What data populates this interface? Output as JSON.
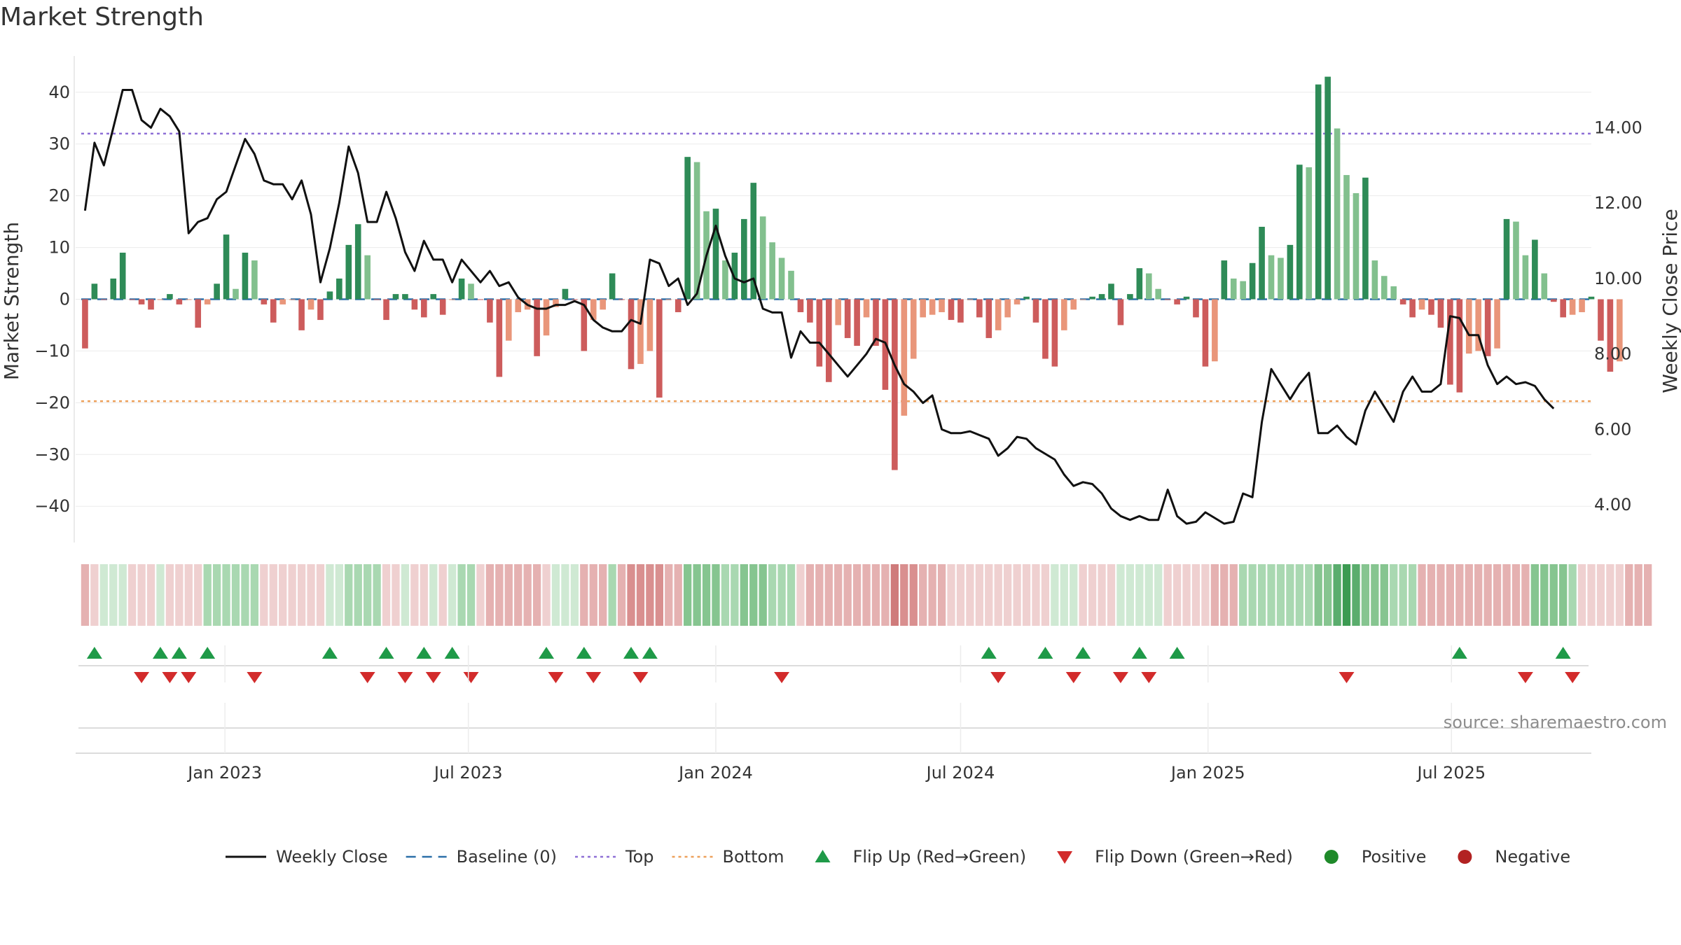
{
  "title": "Market Strength",
  "source": "source: sharemaestro.com",
  "colors": {
    "line": "#111111",
    "baseline": "#2b6fa8",
    "top": "#8e6fd6",
    "bottom": "#eda05a",
    "pos_strong": "#2e8b57",
    "pos_light": "#82c08e",
    "neg_strong": "#cd5c5c",
    "neg_light": "#e9967a",
    "flip_up": "#1f9a48",
    "flip_down": "#d22b2b",
    "positive_dot": "#1f8a2a",
    "negative_dot": "#b22222"
  },
  "chart_data": {
    "type": "bar",
    "title": "Market Strength",
    "ylabel": "Market Strength",
    "y2label": "Weekly Close Price",
    "ylim": [
      -47,
      47
    ],
    "y2lim": [
      3.0,
      15.9
    ],
    "yticks": [
      40,
      30,
      20,
      10,
      0,
      -10,
      -20,
      -30,
      -40
    ],
    "y2ticks": [
      "14.00",
      "12.00",
      "10.00",
      "8.00",
      "6.00",
      "4.00"
    ],
    "y2tick_values": [
      14,
      12,
      10,
      8,
      6,
      4
    ],
    "xlim": [
      "2022-09-12",
      "2025-10-13"
    ],
    "x_start": "2022-09-19",
    "x_step_days": 7,
    "xticks": [
      {
        "label": "Jan 2023",
        "date": "2023-01-01"
      },
      {
        "label": "Jul 2023",
        "date": "2023-07-01"
      },
      {
        "label": "Jan 2024",
        "date": "2024-01-01"
      },
      {
        "label": "Jul 2024",
        "date": "2024-07-01"
      },
      {
        "label": "Jan 2025",
        "date": "2025-01-01"
      },
      {
        "label": "Jul 2025",
        "date": "2025-07-01"
      }
    ],
    "reference_lines": {
      "baseline": 0,
      "top": 32,
      "bottom": -19.7
    },
    "strength": [
      -9.5,
      3,
      0,
      4,
      9,
      0,
      -1,
      -2,
      0,
      1,
      -1,
      0,
      -5.5,
      -1,
      3,
      12.5,
      2,
      9,
      7.5,
      -1,
      -4.5,
      -1,
      0,
      -6,
      -2,
      -4,
      1.5,
      4,
      10.5,
      14.5,
      8.5,
      0,
      -4,
      1,
      1,
      -2,
      -3.5,
      1,
      -3,
      0,
      4,
      3,
      0,
      -4.5,
      -15,
      -8,
      -2.5,
      -2,
      -11,
      -7,
      -1.5,
      2,
      0,
      -10,
      -4,
      -2,
      5,
      0,
      -13.5,
      -12.5,
      -10,
      -19,
      0,
      -2.5,
      27.5,
      26.5,
      17,
      17.5,
      7.5,
      9,
      15.5,
      22.5,
      16,
      11,
      8,
      5.5,
      -2.5,
      -4.5,
      -13,
      -16,
      -5,
      -7.5,
      -9,
      -3.5,
      -9,
      -17.5,
      -33,
      -22.5,
      -11.5,
      -3.5,
      -3,
      -2.5,
      -4,
      -4.5,
      0,
      -3.5,
      -7.5,
      -6,
      -3.5,
      -1,
      0.5,
      -4.5,
      -11.5,
      -13,
      -6,
      -2,
      0,
      0.5,
      1,
      3,
      -5,
      1,
      6,
      5,
      2,
      0,
      -1,
      0.5,
      -3.5,
      -13,
      -12,
      7.5,
      4,
      3.5,
      7,
      14,
      8.5,
      8,
      10.5,
      26,
      25.5,
      41.5,
      43,
      33,
      24,
      20.5,
      23.5,
      7.5,
      4.5,
      2.5,
      -1,
      -3.5,
      -2,
      -3,
      -5.5,
      -16.5,
      -18,
      -10.5,
      -10,
      -11,
      -9.5,
      15.5,
      15,
      8.5,
      11.5,
      5,
      -0.5,
      -3.5,
      -3,
      -2.5,
      0.5,
      -8,
      -14,
      -12
    ],
    "close": [
      11.8,
      13.6,
      13.0,
      14.0,
      15.0,
      15.0,
      14.2,
      14.0,
      14.5,
      14.3,
      13.9,
      11.2,
      11.5,
      11.6,
      12.1,
      12.3,
      13.0,
      13.7,
      13.3,
      12.6,
      12.5,
      12.5,
      12.1,
      12.6,
      11.7,
      9.9,
      10.8,
      12.0,
      13.5,
      12.8,
      11.5,
      11.5,
      12.3,
      11.6,
      10.7,
      10.2,
      11.0,
      10.5,
      10.5,
      9.9,
      10.5,
      10.2,
      9.9,
      10.2,
      9.8,
      9.9,
      9.5,
      9.3,
      9.2,
      9.2,
      9.3,
      9.3,
      9.4,
      9.3,
      8.9,
      8.7,
      8.6,
      8.6,
      8.9,
      8.8,
      10.5,
      10.4,
      9.8,
      10.0,
      9.3,
      9.6,
      10.6,
      11.4,
      10.6,
      10.0,
      9.9,
      10.0,
      9.2,
      9.1,
      9.1,
      7.9,
      8.6,
      8.3,
      8.3,
      8.0,
      7.7,
      7.4,
      7.7,
      8.0,
      8.4,
      8.3,
      7.7,
      7.2,
      7.0,
      6.7,
      6.9,
      6.0,
      5.9,
      5.9,
      5.95,
      5.85,
      5.75,
      5.3,
      5.5,
      5.8,
      5.75,
      5.5,
      5.35,
      5.2,
      4.8,
      4.5,
      4.6,
      4.55,
      4.3,
      3.9,
      3.7,
      3.6,
      3.7,
      3.6,
      3.6,
      4.4,
      3.7,
      3.5,
      3.55,
      3.8,
      3.65,
      3.5,
      3.55,
      4.3,
      4.2,
      6.2,
      7.6,
      7.2,
      6.8,
      7.2,
      7.5,
      5.9,
      5.9,
      6.1,
      5.8,
      5.6,
      6.5,
      7.0,
      6.6,
      6.2,
      7.0,
      7.4,
      7.0,
      7.0,
      7.2,
      9.0,
      8.95,
      8.5,
      8.5,
      7.7,
      7.2,
      7.4,
      7.2,
      7.25,
      7.15,
      6.8,
      6.55
    ],
    "heat_levels": [
      -2,
      -1,
      1,
      1,
      1,
      -1,
      -1,
      -1,
      1,
      -1,
      -1,
      -1,
      -1,
      2,
      2,
      2,
      2,
      2,
      2,
      -1,
      -1,
      -1,
      -1,
      -1,
      -1,
      -1,
      1,
      1,
      2,
      2,
      2,
      2,
      -1,
      -1,
      1,
      -1,
      -1,
      1,
      -1,
      1,
      2,
      2,
      -1,
      -2,
      -2,
      -2,
      -2,
      -2,
      -2,
      -1,
      1,
      1,
      1,
      -2,
      -2,
      -2,
      2,
      -2,
      -3,
      -3,
      -3,
      -3,
      -2,
      -2,
      3,
      3,
      3,
      3,
      2,
      2,
      3,
      3,
      3,
      2,
      2,
      2,
      -1,
      -2,
      -2,
      -2,
      -2,
      -2,
      -2,
      -2,
      -2,
      -2,
      -4,
      -3,
      -3,
      -2,
      -2,
      -2,
      -1,
      -1,
      -1,
      -1,
      -1,
      -1,
      -1,
      -1,
      -1,
      -1,
      -1,
      1,
      1,
      1,
      -1,
      -1,
      -1,
      -1,
      1,
      1,
      1,
      1,
      1,
      -1,
      -1,
      -1,
      -1,
      -1,
      -2,
      -2,
      -2,
      2,
      2,
      2,
      2,
      2,
      2,
      2,
      2,
      3,
      3,
      4,
      5,
      4,
      3,
      3,
      3,
      2,
      2,
      2,
      -2,
      -2,
      -2,
      -2,
      -2,
      -2,
      -2,
      -2,
      -2,
      -2,
      -2,
      -2,
      3,
      3,
      3,
      3,
      2,
      -1,
      -1,
      -1,
      -1,
      -1,
      -2,
      -2,
      -2
    ],
    "flips_up": [
      "2022-09-26",
      "2022-11-14",
      "2022-11-28",
      "2022-12-19",
      "2023-03-20",
      "2023-05-01",
      "2023-05-29",
      "2023-06-19",
      "2023-08-28",
      "2023-09-25",
      "2023-10-30",
      "2023-11-13",
      "2024-07-22",
      "2024-09-02",
      "2024-09-30",
      "2024-11-11",
      "2024-12-09",
      "2025-07-07",
      "2025-09-22"
    ],
    "flips_down": [
      "2022-10-31",
      "2022-11-21",
      "2022-12-05",
      "2023-01-23",
      "2023-04-17",
      "2023-05-15",
      "2023-06-05",
      "2023-07-03",
      "2023-09-04",
      "2023-10-02",
      "2023-11-06",
      "2024-02-19",
      "2024-07-29",
      "2024-09-23",
      "2024-10-28",
      "2024-11-18",
      "2025-04-14",
      "2025-08-25",
      "2025-09-29"
    ],
    "legend": [
      {
        "label": "Weekly Close",
        "marker": "line"
      },
      {
        "label": "Baseline (0)",
        "marker": "dash"
      },
      {
        "label": "Top",
        "marker": "dot-purple"
      },
      {
        "label": "Bottom",
        "marker": "dot-orange"
      },
      {
        "label": "Flip Up (Red→Green)",
        "marker": "triangle-up"
      },
      {
        "label": "Flip Down (Green→Red)",
        "marker": "triangle-down"
      },
      {
        "label": "Positive",
        "marker": "circle-green"
      },
      {
        "label": "Negative",
        "marker": "circle-red"
      }
    ]
  }
}
